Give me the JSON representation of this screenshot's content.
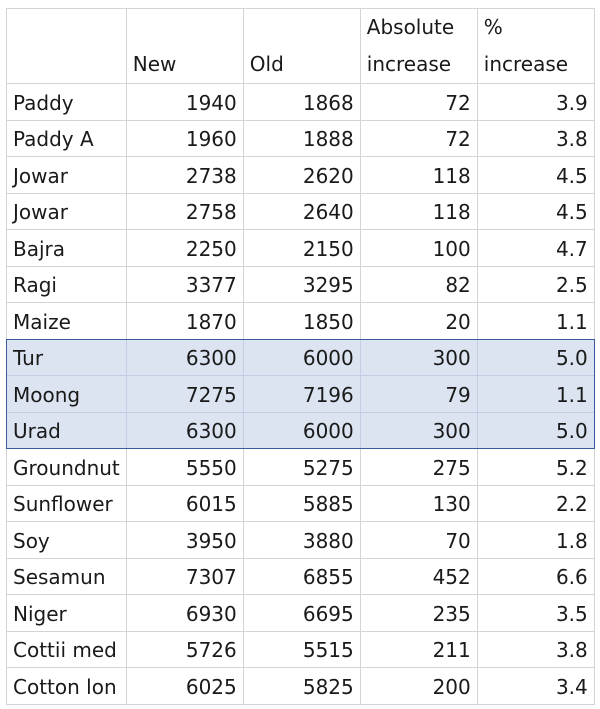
{
  "table": {
    "headers": [
      "",
      "New",
      "Old",
      "Absolute increase",
      "% increase"
    ],
    "rows": [
      {
        "crop": "Paddy",
        "new": "1940",
        "old": "1868",
        "abs": "72",
        "pct": "3.9",
        "highlight": false
      },
      {
        "crop": "Paddy A",
        "new": "1960",
        "old": "1888",
        "abs": "72",
        "pct": "3.8",
        "highlight": false
      },
      {
        "crop": "Jowar",
        "new": "2738",
        "old": "2620",
        "abs": "118",
        "pct": "4.5",
        "highlight": false
      },
      {
        "crop": "Jowar",
        "new": "2758",
        "old": "2640",
        "abs": "118",
        "pct": "4.5",
        "highlight": false
      },
      {
        "crop": "Bajra",
        "new": "2250",
        "old": "2150",
        "abs": "100",
        "pct": "4.7",
        "highlight": false
      },
      {
        "crop": "Ragi",
        "new": "3377",
        "old": "3295",
        "abs": "82",
        "pct": "2.5",
        "highlight": false
      },
      {
        "crop": "Maize",
        "new": "1870",
        "old": "1850",
        "abs": "20",
        "pct": "1.1",
        "highlight": false
      },
      {
        "crop": "Tur",
        "new": "6300",
        "old": "6000",
        "abs": "300",
        "pct": "5.0",
        "highlight": true
      },
      {
        "crop": "Moong",
        "new": "7275",
        "old": "7196",
        "abs": "79",
        "pct": "1.1",
        "highlight": true
      },
      {
        "crop": "Urad",
        "new": "6300",
        "old": "6000",
        "abs": "300",
        "pct": "5.0",
        "highlight": true
      },
      {
        "crop": "Groundnut",
        "new": "5550",
        "old": "5275",
        "abs": "275",
        "pct": "5.2",
        "highlight": false
      },
      {
        "crop": "Sunflower",
        "new": "6015",
        "old": "5885",
        "abs": "130",
        "pct": "2.2",
        "highlight": false
      },
      {
        "crop": "Soy",
        "new": "3950",
        "old": "3880",
        "abs": "70",
        "pct": "1.8",
        "highlight": false
      },
      {
        "crop": "Sesamun",
        "new": "7307",
        "old": "6855",
        "abs": "452",
        "pct": "6.6",
        "highlight": false
      },
      {
        "crop": "Niger",
        "new": "6930",
        "old": "6695",
        "abs": "235",
        "pct": "3.5",
        "highlight": false
      },
      {
        "crop": "Cottii med",
        "new": "5726",
        "old": "5515",
        "abs": "211",
        "pct": "3.8",
        "highlight": false
      },
      {
        "crop": "Cotton lon",
        "new": "6025",
        "old": "5825",
        "abs": "200",
        "pct": "3.4",
        "highlight": false
      }
    ]
  },
  "colors": {
    "highlight_fill": "#dce3f1",
    "highlight_border": "#3a5a9a",
    "grid": "#d4d4d4"
  }
}
